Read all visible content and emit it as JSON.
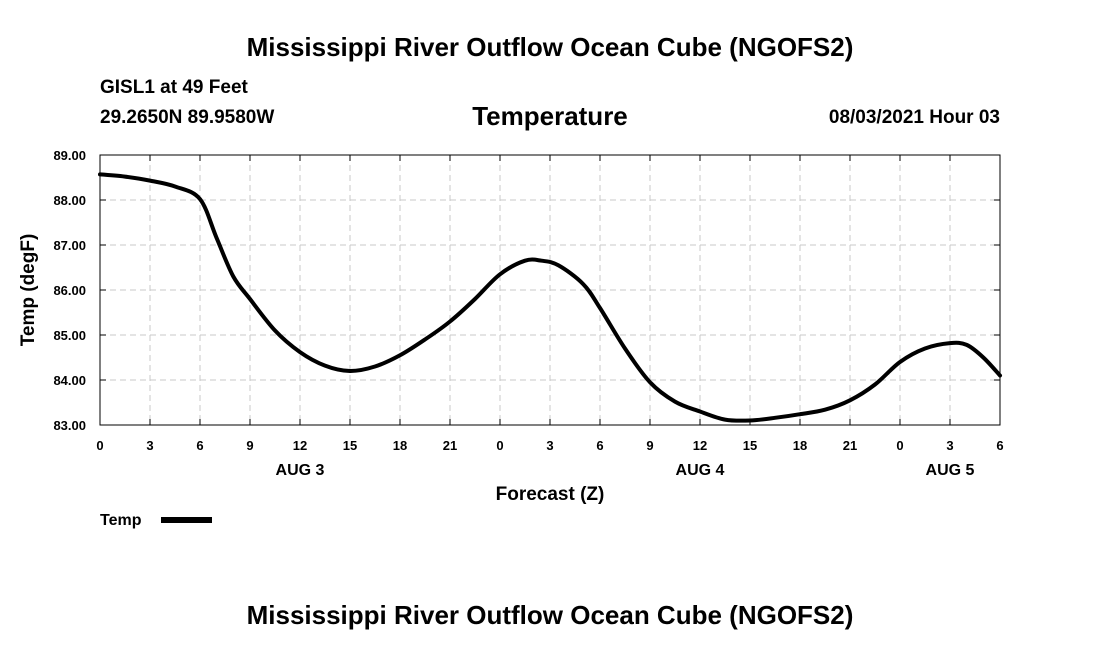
{
  "header": {
    "title": "Mississippi River Outflow Ocean Cube (NGOFS2)",
    "station": "GISL1 at 49 Feet",
    "location": "29.2650N  89.9580W",
    "variable": "Temperature",
    "datetime": "08/03/2021 Hour 03"
  },
  "footer": {
    "title": "Mississippi River Outflow Ocean Cube (NGOFS2)"
  },
  "chart_data": {
    "type": "line",
    "title": "Temperature",
    "xlabel": "Forecast (Z)",
    "ylabel": "Temp (degF)",
    "ylim": [
      83.0,
      89.0
    ],
    "xlim": [
      0,
      54
    ],
    "x_unit": "hours from 0Z Aug 3",
    "yticks": [
      "83.00",
      "84.00",
      "85.00",
      "86.00",
      "87.00",
      "88.00",
      "89.00"
    ],
    "xtick_positions": [
      0,
      3,
      6,
      9,
      12,
      15,
      18,
      21,
      24,
      27,
      30,
      33,
      36,
      39,
      42,
      45,
      48,
      51,
      54
    ],
    "xtick_labels": [
      "0",
      "3",
      "6",
      "9",
      "12",
      "15",
      "18",
      "21",
      "0",
      "3",
      "6",
      "9",
      "12",
      "15",
      "18",
      "21",
      "0",
      "3",
      "6"
    ],
    "day_labels": [
      {
        "label": "AUG 3",
        "hour": 12
      },
      {
        "label": "AUG 4",
        "hour": 36
      },
      {
        "label": "AUG 5",
        "hour": 51
      }
    ],
    "grid": true,
    "legend_position": "bottom-left",
    "series": [
      {
        "name": "Temp",
        "color": "#000000",
        "x": [
          0,
          1.5,
          3,
          4.5,
          6,
          7,
          8,
          9,
          10.5,
          12,
          13.5,
          15,
          16.5,
          18,
          19.5,
          21,
          22.5,
          24,
          25.5,
          26.5,
          27.5,
          29,
          30,
          31.5,
          33,
          34.5,
          36,
          37.5,
          39,
          40.5,
          42,
          43.5,
          45,
          46.5,
          48,
          49.5,
          51,
          52,
          53,
          54
        ],
        "values": [
          88.57,
          88.52,
          88.43,
          88.3,
          88.02,
          87.15,
          86.3,
          85.8,
          85.1,
          84.62,
          84.32,
          84.2,
          84.3,
          84.55,
          84.9,
          85.3,
          85.8,
          86.35,
          86.65,
          86.65,
          86.55,
          86.13,
          85.6,
          84.7,
          83.95,
          83.52,
          83.3,
          83.12,
          83.1,
          83.16,
          83.24,
          83.34,
          83.55,
          83.9,
          84.4,
          84.7,
          84.82,
          84.78,
          84.5,
          84.1
        ]
      }
    ]
  }
}
